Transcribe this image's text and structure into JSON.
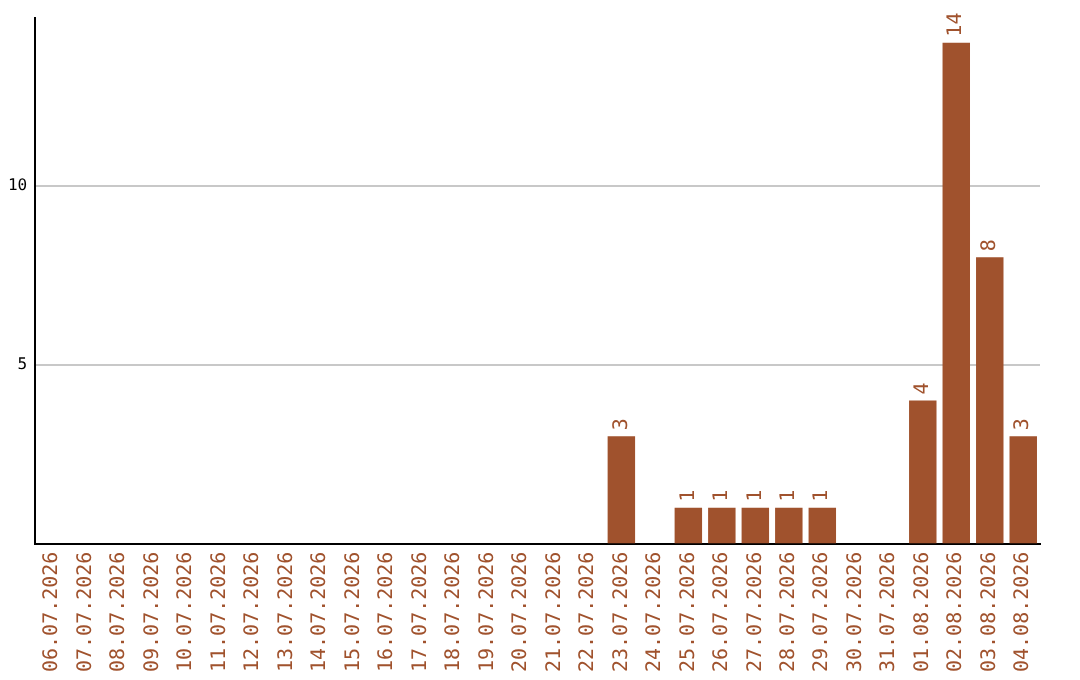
{
  "chart_data": {
    "type": "bar",
    "categories": [
      "06.07.2026",
      "07.07.2026",
      "08.07.2026",
      "09.07.2026",
      "10.07.2026",
      "11.07.2026",
      "12.07.2026",
      "13.07.2026",
      "14.07.2026",
      "15.07.2026",
      "16.07.2026",
      "17.07.2026",
      "18.07.2026",
      "19.07.2026",
      "20.07.2026",
      "21.07.2026",
      "22.07.2026",
      "23.07.2026",
      "24.07.2026",
      "25.07.2026",
      "26.07.2026",
      "27.07.2026",
      "28.07.2026",
      "29.07.2026",
      "30.07.2026",
      "31.07.2026",
      "01.08.2026",
      "02.08.2026",
      "03.08.2026",
      "04.08.2026"
    ],
    "values": [
      0,
      0,
      0,
      0,
      0,
      0,
      0,
      0,
      0,
      0,
      0,
      0,
      0,
      0,
      0,
      0,
      0,
      3,
      0,
      1,
      1,
      1,
      1,
      1,
      0,
      0,
      4,
      14,
      8,
      3
    ],
    "value_labels": [
      null,
      null,
      null,
      null,
      null,
      null,
      null,
      null,
      null,
      null,
      null,
      null,
      null,
      null,
      null,
      null,
      null,
      "3",
      null,
      "1",
      "1",
      "1",
      "1",
      "1",
      null,
      null,
      "4",
      "14",
      "8",
      "3"
    ],
    "color": "#a0522d",
    "ylim": [
      0,
      14.7
    ],
    "yticks": [
      5,
      10
    ],
    "grid": "y",
    "legend": false
  }
}
